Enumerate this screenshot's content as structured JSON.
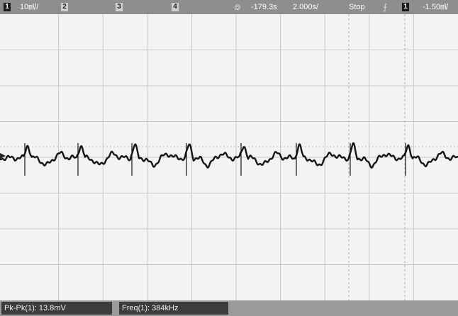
{
  "status_bar": {
    "ch1_label": "1",
    "ch1_scale": "10㎷/",
    "ch2_label": "2",
    "ch3_label": "3",
    "ch4_label": "4",
    "trigger_icon": "trigger-marker-icon",
    "time_offset": "-179.3s",
    "time_scale": "2.000s/",
    "run_state": "Stop",
    "trigger_edge_icon": "rising-edge-icon",
    "trig_ch_label": "1",
    "trig_level": "-1.50㎷"
  },
  "measurements": {
    "pkpk": "Pk-Pk(1): 13.8mV",
    "freq": "Freq(1): 384kHz"
  },
  "colors": {
    "trace": "#141414",
    "grid": "#c8c8c8",
    "status_bar": "#8e8e8e",
    "measurement_bar": "#9a9a9a",
    "measurement_box": "#3c3c3c"
  }
}
